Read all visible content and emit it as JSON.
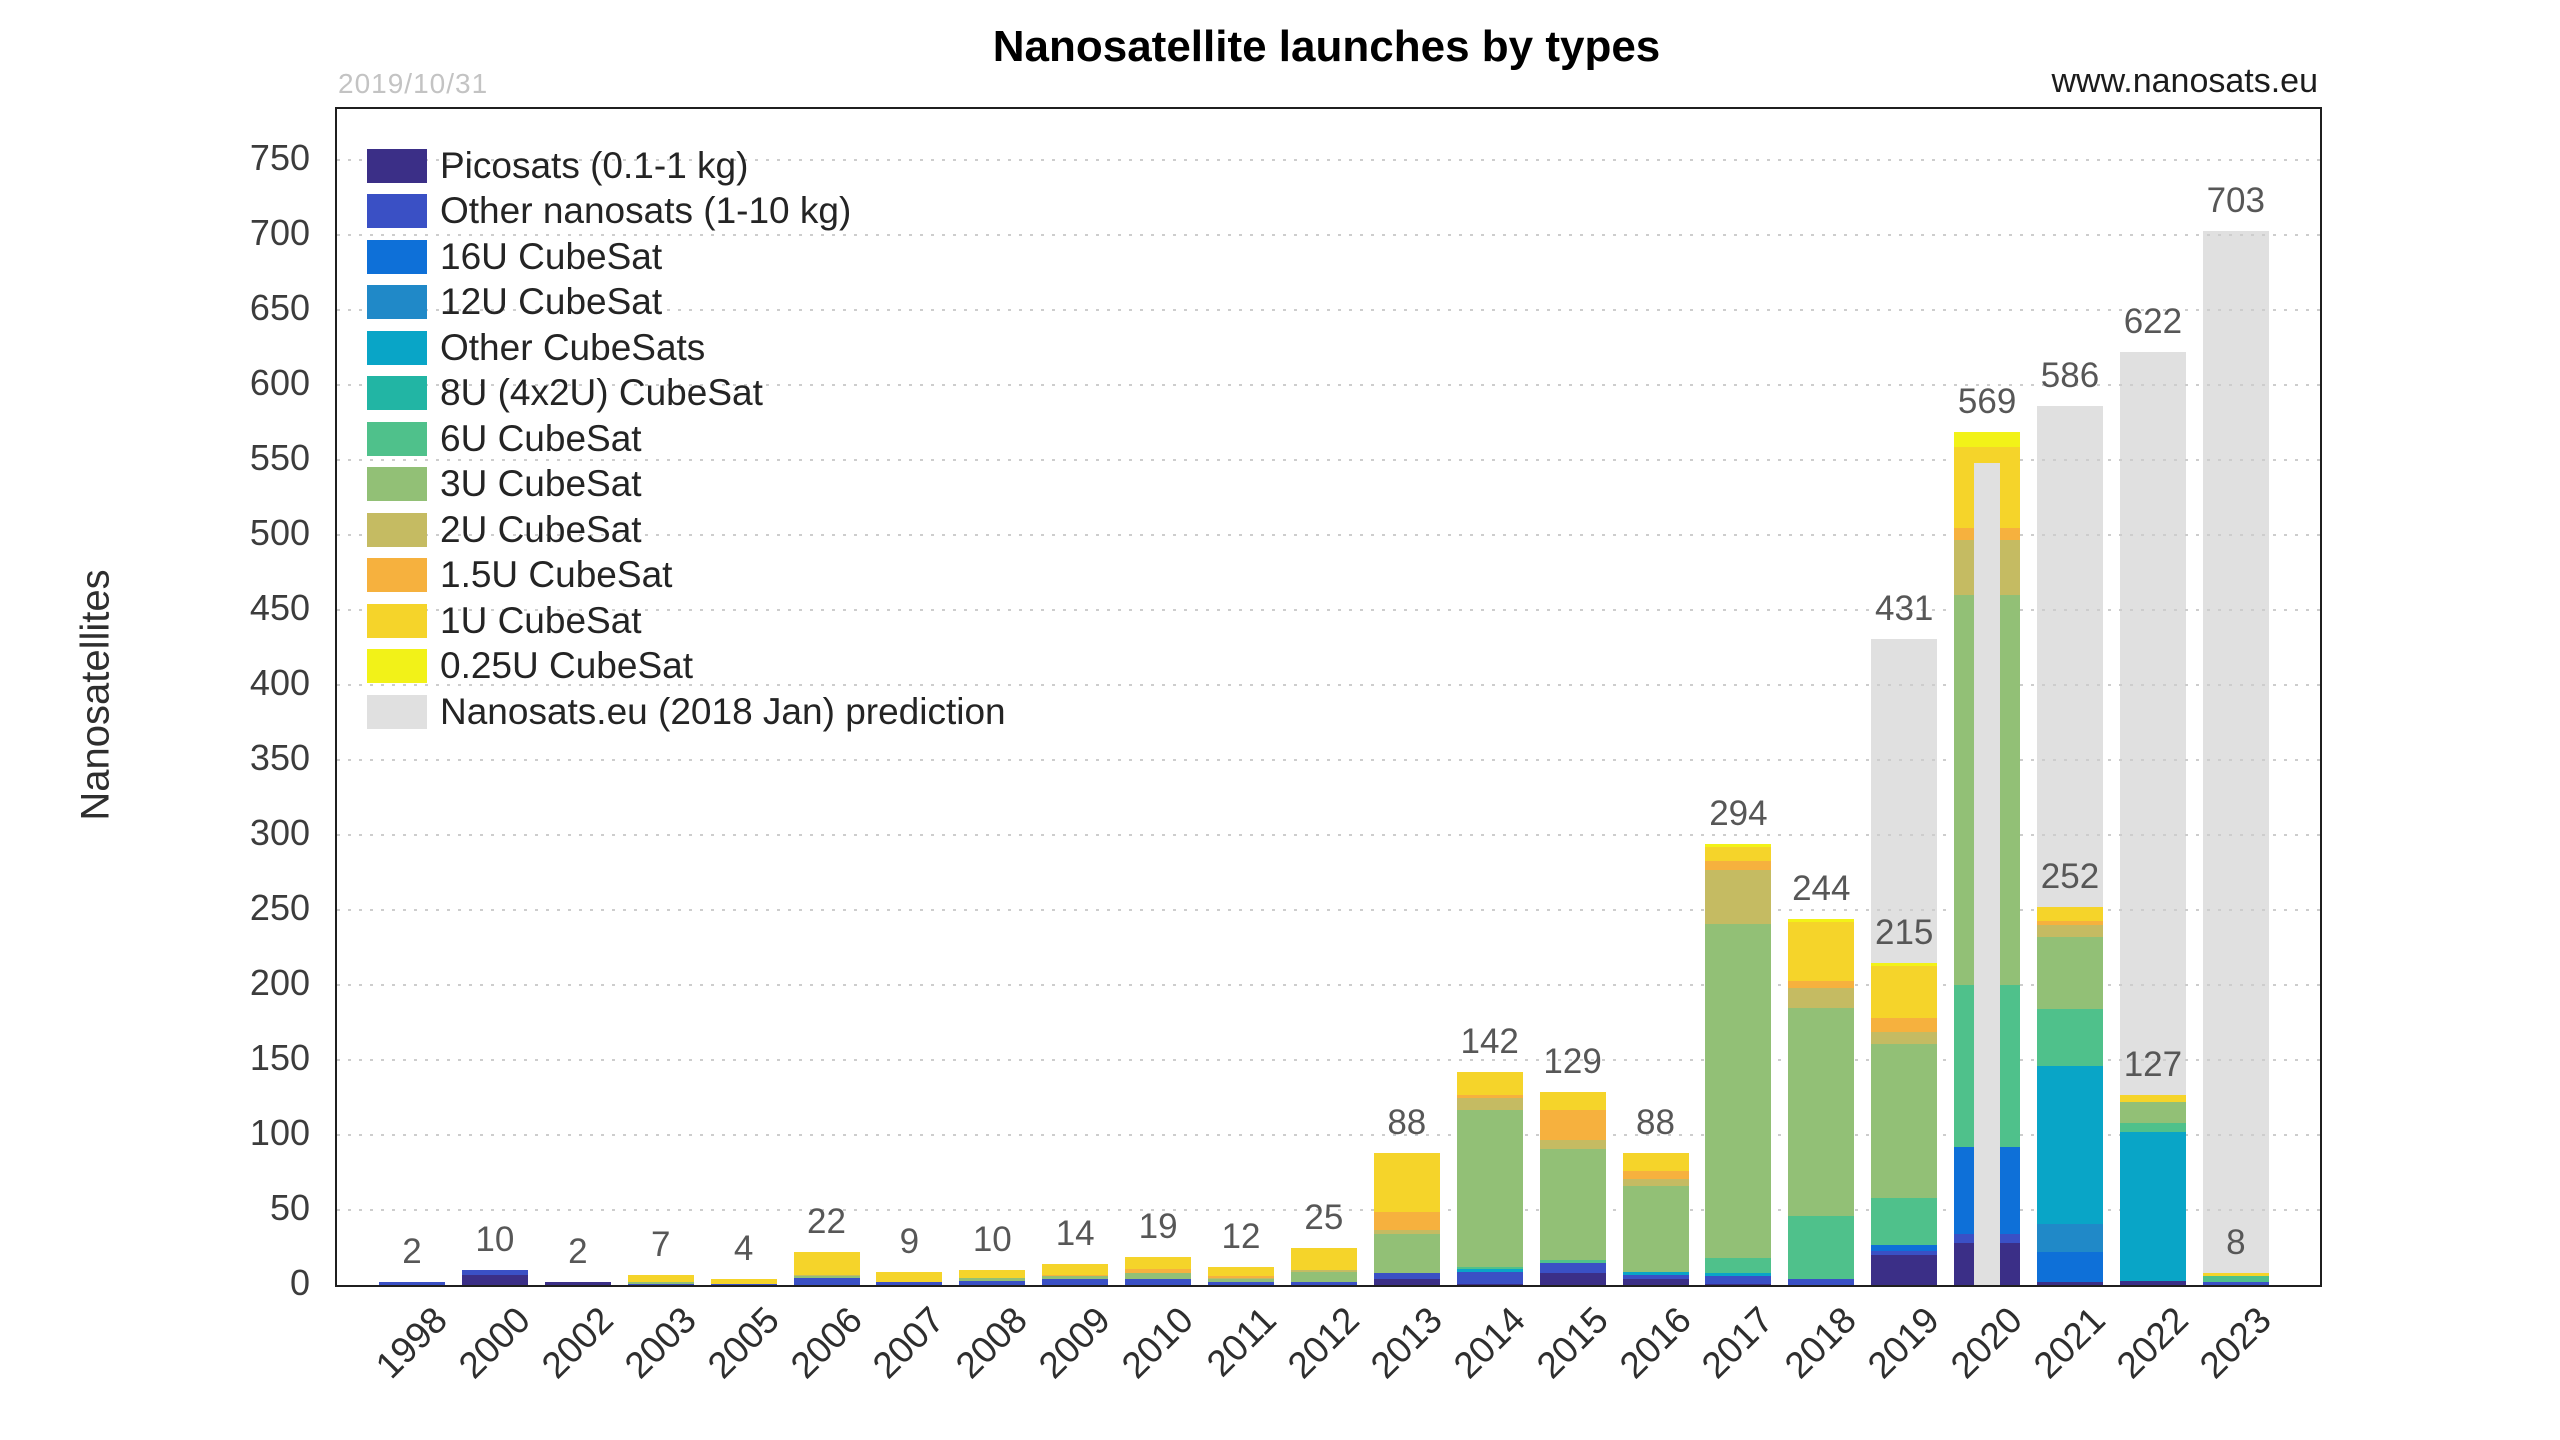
{
  "header": {
    "title": "Nanosatellite launches by types",
    "date_stamp": "2019/10/31",
    "watermark": "www.nanosats.eu"
  },
  "chart_data": {
    "type": "bar",
    "stacked": true,
    "title": "Nanosatellite launches by types",
    "xlabel": "",
    "ylabel": "Nanosatellites",
    "ylim": [
      0,
      784
    ],
    "yticks": [
      0,
      50,
      100,
      150,
      200,
      250,
      300,
      350,
      400,
      450,
      500,
      550,
      600,
      650,
      700,
      750
    ],
    "grid": "horizontal-dotted",
    "legend_position": "upper-left-inside",
    "series": [
      {
        "key": "picosats",
        "label": "Picosats (0.1-1 kg)",
        "color": "#3b2f87"
      },
      {
        "key": "other_nanosats",
        "label": "Other nanosats (1-10 kg)",
        "color": "#3a50c5"
      },
      {
        "key": "cs16u",
        "label": "16U CubeSat",
        "color": "#0e70d8"
      },
      {
        "key": "cs12u",
        "label": "12U CubeSat",
        "color": "#2089c8"
      },
      {
        "key": "other_cubesats",
        "label": "Other CubeSats",
        "color": "#09a5c7"
      },
      {
        "key": "cs8u",
        "label": "8U (4x2U) CubeSat",
        "color": "#22b5a4"
      },
      {
        "key": "cs6u",
        "label": "6U CubeSat",
        "color": "#4fc18b"
      },
      {
        "key": "cs3u",
        "label": "3U CubeSat",
        "color": "#92c076"
      },
      {
        "key": "cs2u",
        "label": "2U CubeSat",
        "color": "#c5bb62"
      },
      {
        "key": "cs1_5u",
        "label": "1.5U CubeSat",
        "color": "#f6b13e"
      },
      {
        "key": "cs1u",
        "label": "1U CubeSat",
        "color": "#f5d42a"
      },
      {
        "key": "cs0_25u",
        "label": "0.25U CubeSat",
        "color": "#f2f218"
      }
    ],
    "prediction_series": {
      "key": "prediction",
      "label": "Nanosats.eu (2018 Jan) prediction",
      "color": "#e0e0e0"
    },
    "categories": [
      "1998",
      "2000",
      "2002",
      "2003",
      "2005",
      "2006",
      "2007",
      "2008",
      "2009",
      "2010",
      "2011",
      "2012",
      "2013",
      "2014",
      "2015",
      "2016",
      "2017",
      "2018",
      "2019",
      "2020",
      "2021",
      "2022",
      "2023"
    ],
    "bars": [
      {
        "year": "1998",
        "total": 2,
        "segments": {
          "other_nanosats": 2
        }
      },
      {
        "year": "2000",
        "total": 10,
        "segments": {
          "picosats": 7,
          "other_nanosats": 3
        }
      },
      {
        "year": "2002",
        "total": 2,
        "segments": {
          "picosats": 2
        }
      },
      {
        "year": "2003",
        "total": 7,
        "segments": {
          "other_nanosats": 1,
          "cs3u": 1,
          "cs1u": 5
        }
      },
      {
        "year": "2005",
        "total": 4,
        "segments": {
          "other_nanosats": 1,
          "cs1u": 3
        }
      },
      {
        "year": "2006",
        "total": 22,
        "segments": {
          "other_nanosats": 5,
          "cs3u": 1,
          "cs2u": 1,
          "cs1u": 15
        }
      },
      {
        "year": "2007",
        "total": 9,
        "segments": {
          "other_nanosats": 2,
          "cs1u": 7
        }
      },
      {
        "year": "2008",
        "total": 10,
        "segments": {
          "other_nanosats": 3,
          "cs3u": 2,
          "cs1u": 5
        }
      },
      {
        "year": "2009",
        "total": 14,
        "segments": {
          "other_nanosats": 4,
          "cs3u": 2,
          "cs1_5u": 1,
          "cs1u": 7
        }
      },
      {
        "year": "2010",
        "total": 19,
        "segments": {
          "other_nanosats": 4,
          "cs3u": 4,
          "cs1_5u": 3,
          "cs1u": 8
        }
      },
      {
        "year": "2011",
        "total": 12,
        "segments": {
          "other_nanosats": 2,
          "cs3u": 2,
          "cs2u": 1,
          "cs1_5u": 1,
          "cs1u": 6
        }
      },
      {
        "year": "2012",
        "total": 25,
        "segments": {
          "other_nanosats": 2,
          "cs3u": 7,
          "cs2u": 1,
          "cs1u": 15
        }
      },
      {
        "year": "2013",
        "total": 88,
        "segments": {
          "picosats": 4,
          "other_nanosats": 4,
          "cs3u": 26,
          "cs2u": 3,
          "cs1_5u": 12,
          "cs1u": 39
        }
      },
      {
        "year": "2014",
        "total": 142,
        "segments": {
          "picosats": 1,
          "other_nanosats": 8,
          "other_cubesats": 2,
          "cs6u": 1,
          "cs3u": 105,
          "cs2u": 8,
          "cs1_5u": 2,
          "cs1u": 15
        }
      },
      {
        "year": "2015",
        "total": 129,
        "segments": {
          "picosats": 8,
          "other_nanosats": 7,
          "cs6u": 2,
          "cs3u": 74,
          "cs2u": 6,
          "cs1_5u": 20,
          "cs1u": 12
        }
      },
      {
        "year": "2016",
        "total": 88,
        "segments": {
          "picosats": 4,
          "other_nanosats": 3,
          "other_cubesats": 2,
          "cs3u": 57,
          "cs2u": 5,
          "cs1_5u": 5,
          "cs1u": 12
        }
      },
      {
        "year": "2017",
        "total": 294,
        "segments": {
          "picosats": 1,
          "other_nanosats": 5,
          "other_cubesats": 2,
          "cs6u": 10,
          "cs3u": 223,
          "cs2u": 36,
          "cs1_5u": 6,
          "cs1u": 9,
          "cs0_25u": 2
        }
      },
      {
        "year": "2018",
        "total": 244,
        "segments": {
          "other_nanosats": 4,
          "cs6u": 42,
          "cs3u": 139,
          "cs2u": 13,
          "cs1_5u": 5,
          "cs1u": 39,
          "cs0_25u": 2
        }
      },
      {
        "year": "2019",
        "total": 215,
        "segments": {
          "picosats": 20,
          "other_nanosats": 3,
          "cs16u": 4,
          "cs6u": 31,
          "cs3u": 103,
          "cs2u": 8,
          "cs1_5u": 9,
          "cs1u": 35,
          "cs0_25u": 2
        },
        "prediction": 431,
        "prediction_label": true
      },
      {
        "year": "2020",
        "total": 569,
        "segments": {
          "picosats": 28,
          "other_nanosats": 6,
          "cs16u": 58,
          "cs6u": 108,
          "cs3u": 260,
          "cs2u": 37,
          "cs1_5u": 8,
          "cs1u": 54,
          "cs0_25u": 10
        },
        "prediction": 548,
        "prediction_overlay": true,
        "prediction_label": false
      },
      {
        "year": "2021",
        "total": 252,
        "segments": {
          "picosats": 2,
          "cs16u": 20,
          "cs12u": 19,
          "other_cubesats": 105,
          "cs6u": 38,
          "cs3u": 48,
          "cs2u": 8,
          "cs1_5u": 3,
          "cs1u": 9
        },
        "prediction": 586,
        "prediction_label": true
      },
      {
        "year": "2022",
        "total": 127,
        "segments": {
          "picosats": 3,
          "other_cubesats": 99,
          "cs6u": 6,
          "cs3u": 14,
          "cs1u": 5
        },
        "prediction": 622,
        "prediction_label": true
      },
      {
        "year": "2023",
        "total": 8,
        "segments": {
          "other_nanosats": 2,
          "cs6u": 4,
          "cs1u": 2
        },
        "prediction": 703,
        "prediction_label": true
      }
    ]
  }
}
